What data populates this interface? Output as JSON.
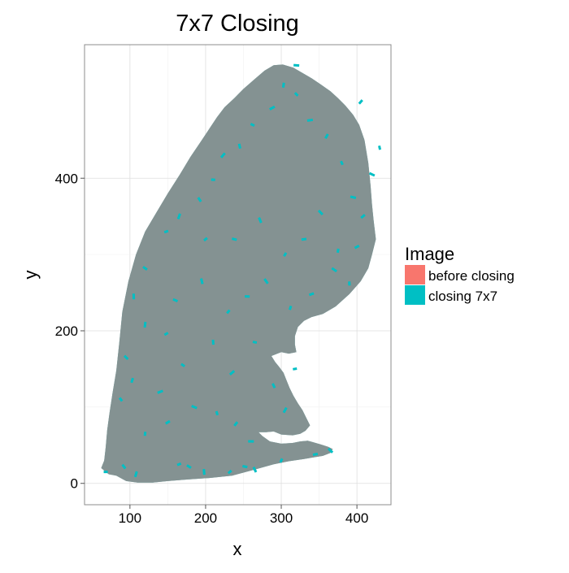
{
  "chart_data": {
    "type": "area",
    "title": "7x7 Closing",
    "xlabel": "x",
    "ylabel": "y",
    "xlim": [
      40,
      445
    ],
    "ylim": [
      -28,
      575
    ],
    "x_ticks": [
      100,
      200,
      300,
      400
    ],
    "x_tick_labels": [
      "100",
      "200",
      "300",
      "400"
    ],
    "y_ticks": [
      0,
      200,
      400
    ],
    "y_tick_labels": [
      "0",
      "200",
      "400"
    ],
    "grid": true,
    "legend_position": "right",
    "legend": {
      "title": "Image",
      "entries": [
        {
          "label": "before closing",
          "color": "#F8766D"
        },
        {
          "label": "closing 7x7",
          "color": "#00BFC4"
        }
      ]
    },
    "series": [
      {
        "name": "before closing",
        "color": "#F8766D",
        "outline": [
          [
            62,
            20
          ],
          [
            72,
            12
          ],
          [
            82,
            10
          ],
          [
            95,
            3
          ],
          [
            110,
            1
          ],
          [
            130,
            1
          ],
          [
            150,
            3
          ],
          [
            175,
            5
          ],
          [
            205,
            7
          ],
          [
            235,
            10
          ],
          [
            265,
            18
          ],
          [
            290,
            25
          ],
          [
            310,
            29
          ],
          [
            330,
            32
          ],
          [
            355,
            36
          ],
          [
            365,
            40
          ],
          [
            368,
            45
          ],
          [
            362,
            48
          ],
          [
            352,
            51
          ],
          [
            335,
            56
          ],
          [
            325,
            55
          ],
          [
            315,
            53
          ],
          [
            300,
            52
          ],
          [
            285,
            55
          ],
          [
            275,
            62
          ],
          [
            270,
            67
          ],
          [
            280,
            67
          ],
          [
            290,
            68
          ],
          [
            300,
            64
          ],
          [
            315,
            63
          ],
          [
            325,
            65
          ],
          [
            332,
            69
          ],
          [
            338,
            76
          ],
          [
            335,
            82
          ],
          [
            332,
            88
          ],
          [
            328,
            96
          ],
          [
            322,
            105
          ],
          [
            316,
            115
          ],
          [
            311,
            125
          ],
          [
            307,
            135
          ],
          [
            303,
            145
          ],
          [
            297,
            153
          ],
          [
            292,
            159
          ],
          [
            287,
            167
          ],
          [
            300,
            172
          ],
          [
            310,
            170
          ],
          [
            320,
            172
          ],
          [
            318,
            182
          ],
          [
            318,
            193
          ],
          [
            322,
            205
          ],
          [
            330,
            213
          ],
          [
            340,
            218
          ],
          [
            355,
            222
          ],
          [
            372,
            232
          ],
          [
            390,
            248
          ],
          [
            405,
            265
          ],
          [
            415,
            282
          ],
          [
            420,
            300
          ],
          [
            425,
            320
          ],
          [
            422,
            345
          ],
          [
            420,
            365
          ],
          [
            418,
            390
          ],
          [
            415,
            420
          ],
          [
            410,
            450
          ],
          [
            403,
            470
          ],
          [
            395,
            483
          ],
          [
            385,
            495
          ],
          [
            375,
            505
          ],
          [
            365,
            514
          ],
          [
            352,
            523
          ],
          [
            340,
            531
          ],
          [
            328,
            538
          ],
          [
            316,
            545
          ],
          [
            302,
            549
          ],
          [
            290,
            548
          ],
          [
            278,
            541
          ],
          [
            265,
            530
          ],
          [
            250,
            517
          ],
          [
            238,
            505
          ],
          [
            225,
            493
          ],
          [
            215,
            480
          ],
          [
            205,
            465
          ],
          [
            193,
            447
          ],
          [
            180,
            428
          ],
          [
            166,
            405
          ],
          [
            150,
            380
          ],
          [
            135,
            355
          ],
          [
            120,
            330
          ],
          [
            108,
            300
          ],
          [
            98,
            265
          ],
          [
            90,
            225
          ],
          [
            86,
            185
          ],
          [
            82,
            148
          ],
          [
            77,
            118
          ],
          [
            73,
            92
          ],
          [
            70,
            70
          ],
          [
            68,
            48
          ],
          [
            66,
            30
          ]
        ]
      },
      {
        "name": "closing 7x7",
        "color": "#00BFC4",
        "outline": [
          [
            62,
            20
          ],
          [
            72,
            12
          ],
          [
            82,
            10
          ],
          [
            95,
            3
          ],
          [
            110,
            1
          ],
          [
            130,
            1
          ],
          [
            150,
            3
          ],
          [
            175,
            5
          ],
          [
            205,
            7
          ],
          [
            235,
            10
          ],
          [
            265,
            18
          ],
          [
            290,
            25
          ],
          [
            310,
            29
          ],
          [
            330,
            32
          ],
          [
            355,
            36
          ],
          [
            365,
            40
          ],
          [
            368,
            45
          ],
          [
            362,
            48
          ],
          [
            352,
            51
          ],
          [
            335,
            56
          ],
          [
            325,
            55
          ],
          [
            315,
            53
          ],
          [
            300,
            52
          ],
          [
            285,
            55
          ],
          [
            275,
            62
          ],
          [
            270,
            67
          ],
          [
            280,
            67
          ],
          [
            290,
            68
          ],
          [
            300,
            64
          ],
          [
            315,
            63
          ],
          [
            325,
            65
          ],
          [
            332,
            69
          ],
          [
            338,
            76
          ],
          [
            335,
            82
          ],
          [
            332,
            88
          ],
          [
            328,
            96
          ],
          [
            322,
            105
          ],
          [
            316,
            115
          ],
          [
            311,
            125
          ],
          [
            307,
            135
          ],
          [
            303,
            145
          ],
          [
            297,
            153
          ],
          [
            292,
            159
          ],
          [
            287,
            167
          ],
          [
            300,
            172
          ],
          [
            310,
            170
          ],
          [
            320,
            172
          ],
          [
            318,
            182
          ],
          [
            318,
            193
          ],
          [
            322,
            205
          ],
          [
            330,
            213
          ],
          [
            340,
            218
          ],
          [
            355,
            222
          ],
          [
            372,
            232
          ],
          [
            390,
            248
          ],
          [
            405,
            265
          ],
          [
            415,
            282
          ],
          [
            420,
            300
          ],
          [
            425,
            320
          ],
          [
            422,
            345
          ],
          [
            420,
            365
          ],
          [
            418,
            390
          ],
          [
            415,
            420
          ],
          [
            410,
            450
          ],
          [
            403,
            470
          ],
          [
            395,
            483
          ],
          [
            385,
            495
          ],
          [
            375,
            505
          ],
          [
            365,
            514
          ],
          [
            352,
            523
          ],
          [
            340,
            531
          ],
          [
            328,
            538
          ],
          [
            316,
            545
          ],
          [
            302,
            549
          ],
          [
            290,
            548
          ],
          [
            278,
            541
          ],
          [
            265,
            530
          ],
          [
            250,
            517
          ],
          [
            238,
            505
          ],
          [
            225,
            493
          ],
          [
            215,
            480
          ],
          [
            205,
            465
          ],
          [
            193,
            447
          ],
          [
            180,
            428
          ],
          [
            166,
            405
          ],
          [
            150,
            380
          ],
          [
            135,
            355
          ],
          [
            120,
            330
          ],
          [
            108,
            300
          ],
          [
            98,
            265
          ],
          [
            90,
            225
          ],
          [
            86,
            185
          ],
          [
            82,
            148
          ],
          [
            77,
            118
          ],
          [
            73,
            92
          ],
          [
            70,
            70
          ],
          [
            68,
            48
          ],
          [
            66,
            30
          ]
        ],
        "extra_points": [
          [
            68,
            15
          ],
          [
            92,
            22
          ],
          [
            108,
            12
          ],
          [
            165,
            25
          ],
          [
            178,
            22
          ],
          [
            198,
            15
          ],
          [
            232,
            15
          ],
          [
            252,
            22
          ],
          [
            265,
            18
          ],
          [
            300,
            30
          ],
          [
            345,
            38
          ],
          [
            365,
            43
          ],
          [
            120,
            65
          ],
          [
            150,
            80
          ],
          [
            185,
            100
          ],
          [
            215,
            92
          ],
          [
            240,
            78
          ],
          [
            260,
            55
          ],
          [
            88,
            110
          ],
          [
            103,
            135
          ],
          [
            140,
            120
          ],
          [
            170,
            155
          ],
          [
            210,
            185
          ],
          [
            235,
            145
          ],
          [
            265,
            185
          ],
          [
            290,
            128
          ],
          [
            305,
            96
          ],
          [
            318,
            150
          ],
          [
            95,
            165
          ],
          [
            120,
            208
          ],
          [
            148,
            196
          ],
          [
            160,
            240
          ],
          [
            195,
            265
          ],
          [
            230,
            225
          ],
          [
            255,
            245
          ],
          [
            280,
            265
          ],
          [
            312,
            230
          ],
          [
            340,
            248
          ],
          [
            370,
            280
          ],
          [
            390,
            262
          ],
          [
            408,
            350
          ],
          [
            395,
            375
          ],
          [
            380,
            420
          ],
          [
            360,
            455
          ],
          [
            338,
            476
          ],
          [
            320,
            510
          ],
          [
            303,
            522
          ],
          [
            288,
            492
          ],
          [
            262,
            470
          ],
          [
            245,
            442
          ],
          [
            223,
            430
          ],
          [
            210,
            398
          ],
          [
            192,
            372
          ],
          [
            165,
            350
          ],
          [
            148,
            330
          ],
          [
            120,
            282
          ],
          [
            105,
            245
          ],
          [
            200,
            320
          ],
          [
            238,
            320
          ],
          [
            272,
            345
          ],
          [
            305,
            300
          ],
          [
            330,
            320
          ],
          [
            352,
            355
          ],
          [
            375,
            305
          ],
          [
            400,
            310
          ],
          [
            420,
            405
          ],
          [
            430,
            440
          ],
          [
            405,
            500
          ],
          [
            320,
            548
          ]
        ],
        "segments": [
          [
            [
              238,
              350
            ],
            [
              252,
              340
            ]
          ],
          [
            [
              262,
              330
            ],
            [
              285,
              324
            ]
          ],
          [
            [
              150,
              304
            ],
            [
              178,
              306
            ]
          ],
          [
            [
              182,
              306
            ],
            [
              210,
              304
            ]
          ],
          [
            [
              208,
              409
            ],
            [
              225,
              410
            ]
          ],
          [
            [
              230,
              410
            ],
            [
              238,
              410
            ]
          ]
        ]
      }
    ]
  }
}
